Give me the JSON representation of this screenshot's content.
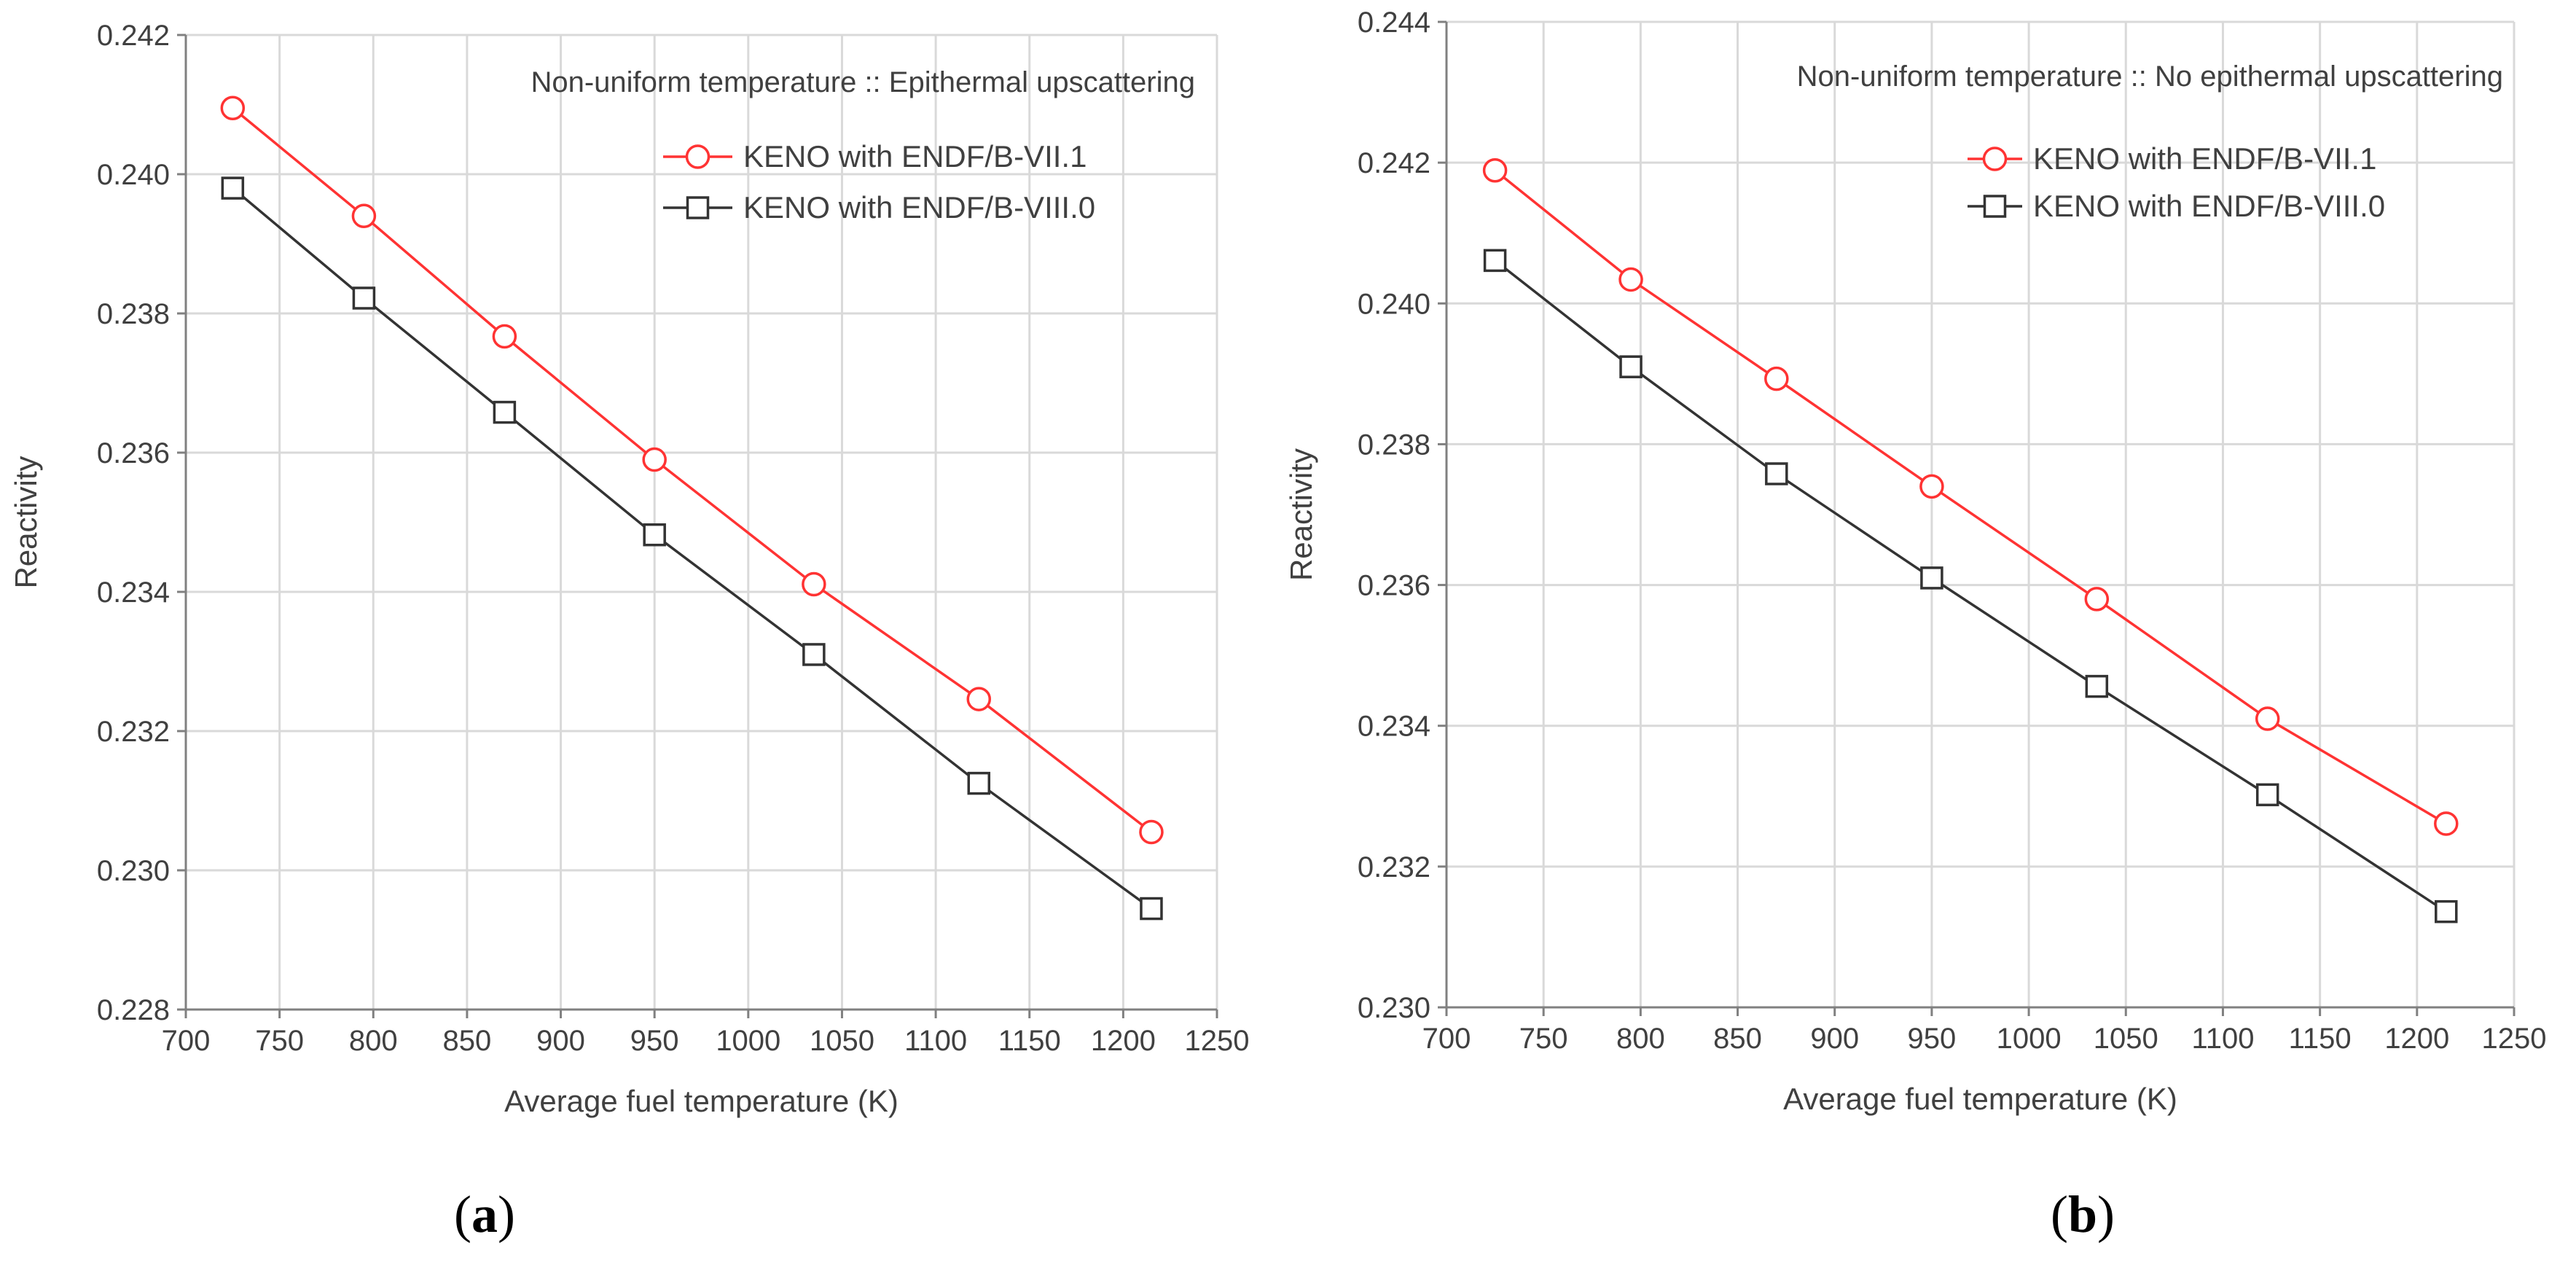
{
  "colors": {
    "series_red": "#ff3333",
    "series_black": "#333333",
    "grid": "#d9d9d9",
    "axis": "#808080"
  },
  "chart_data": [
    {
      "type": "line",
      "panel": "a",
      "caption_letter": "a",
      "annotation": "Non-uniform temperature :: Epithermal upscattering",
      "xlabel": "Average fuel temperature (K)",
      "ylabel": "Reactivity",
      "xlim": [
        700,
        1250
      ],
      "ylim": [
        0.228,
        0.242
      ],
      "xticks": [
        700,
        750,
        800,
        850,
        900,
        950,
        1000,
        1050,
        1100,
        1150,
        1200,
        1250
      ],
      "yticks": [
        "0.228",
        "0.230",
        "0.232",
        "0.234",
        "0.236",
        "0.238",
        "0.240",
        "0.242"
      ],
      "grid": true,
      "legend_position": "top-right",
      "series": [
        {
          "name": "KENO with ENDF/B-VII.1",
          "color": "#ff3333",
          "marker": "circle",
          "x": [
            725,
            795,
            870,
            950,
            1035,
            1123,
            1215
          ],
          "y": [
            0.24095,
            0.2394,
            0.23767,
            0.2359,
            0.23411,
            0.23246,
            0.23055
          ]
        },
        {
          "name": "KENO with ENDF/B-VIII.0",
          "color": "#333333",
          "marker": "square",
          "x": [
            725,
            795,
            870,
            950,
            1035,
            1123,
            1215
          ],
          "y": [
            0.2398,
            0.23822,
            0.23658,
            0.23482,
            0.2331,
            0.23125,
            0.22945
          ]
        }
      ]
    },
    {
      "type": "line",
      "panel": "b",
      "caption_letter": "b",
      "annotation": "Non-uniform temperature :: No epithermal upscattering",
      "xlabel": "Average fuel temperature (K)",
      "ylabel": "Reactivity",
      "xlim": [
        700,
        1250
      ],
      "ylim": [
        0.23,
        0.244
      ],
      "xticks": [
        700,
        750,
        800,
        850,
        900,
        950,
        1000,
        1050,
        1100,
        1150,
        1200,
        1250
      ],
      "yticks": [
        "0.230",
        "0.232",
        "0.234",
        "0.236",
        "0.238",
        "0.240",
        "0.242",
        "0.244"
      ],
      "grid": true,
      "legend_position": "top-right",
      "series": [
        {
          "name": "KENO with ENDF/B-VII.1",
          "color": "#ff3333",
          "marker": "circle",
          "x": [
            725,
            795,
            870,
            950,
            1035,
            1123,
            1215
          ],
          "y": [
            0.24189,
            0.24034,
            0.23893,
            0.2374,
            0.2358,
            0.2341,
            0.23261
          ]
        },
        {
          "name": "KENO with ENDF/B-VIII.0",
          "color": "#333333",
          "marker": "square",
          "x": [
            725,
            795,
            870,
            950,
            1035,
            1123,
            1215
          ],
          "y": [
            0.24061,
            0.2391,
            0.23758,
            0.2361,
            0.23456,
            0.23302,
            0.23136
          ]
        }
      ]
    }
  ]
}
